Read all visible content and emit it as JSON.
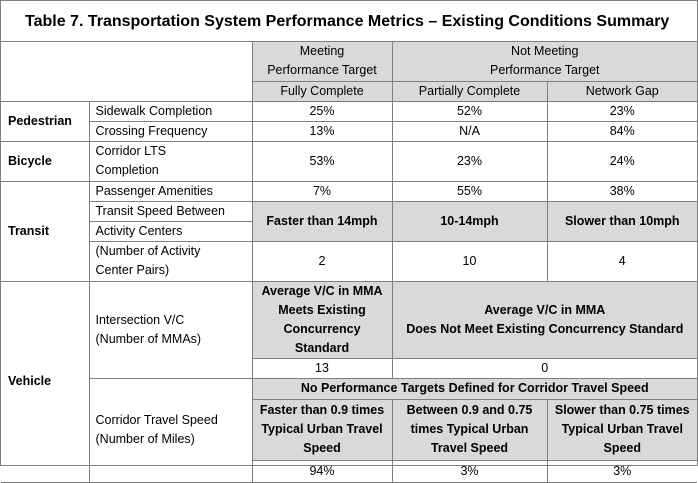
{
  "title": "Table 7. Transportation System Performance Metrics – Existing Conditions Summary",
  "header": {
    "meeting_line1": "Meeting",
    "meeting_line2": "Performance Target",
    "not_meeting_line1": "Not Meeting",
    "not_meeting_line2": "Performance Target",
    "fully_complete": "Fully Complete",
    "partially_complete": "Partially Complete",
    "network_gap": "Network Gap"
  },
  "pedestrian": {
    "category": "Pedestrian",
    "sidewalk": {
      "label": "Sidewalk Completion",
      "values": [
        "25%",
        "52%",
        "23%"
      ]
    },
    "crossing": {
      "label": "Crossing Frequency",
      "values": [
        "13%",
        "N/A",
        "84%"
      ]
    }
  },
  "bicycle": {
    "category": "Bicycle",
    "corridor_lts": {
      "label_line1": "Corridor LTS",
      "label_line2": "Completion",
      "values": [
        "53%",
        "23%",
        "24%"
      ]
    }
  },
  "transit": {
    "category": "Transit",
    "amenities": {
      "label": "Passenger Amenities",
      "values": [
        "7%",
        "55%",
        "38%"
      ]
    },
    "speed": {
      "label_line1": "Transit Speed Between",
      "label_line2": "Activity Centers",
      "label_line3": "(Number of Activity",
      "label_line4": "Center Pairs)",
      "headers": [
        "Faster than 14mph",
        "10-14mph",
        "Slower than 10mph"
      ],
      "values": [
        "2",
        "10",
        "4"
      ]
    }
  },
  "vehicle": {
    "category": "Vehicle",
    "intersection": {
      "label_line1": "Intersection V/C",
      "label_line2": "(Number of MMAs)",
      "meets_line1": "Average V/C in MMA",
      "meets_line2": "Meets Existing",
      "meets_line3": "Concurrency Standard",
      "not_meets_line1": "Average V/C in MMA",
      "not_meets_line2": "Does Not Meet Existing Concurrency Standard",
      "values": [
        "13",
        "0"
      ]
    },
    "corridor": {
      "label_line1": "Corridor Travel Speed",
      "label_line2": "(Number of Miles)",
      "no_targets": "No Performance Targets Defined for Corridor Travel Speed",
      "header1_line1": "Faster than 0.9 times",
      "header1_line2": "Typical Urban Travel",
      "header1_line3": "Speed",
      "header2_line1": "Between 0.9 and 0.75",
      "header2_line2": "times Typical Urban",
      "header2_line3": "Travel Speed",
      "header3_line1": "Slower than 0.75 times",
      "header3_line2": "Typical Urban Travel",
      "header3_line3": "Speed",
      "values": [
        "94%",
        "3%",
        "3%"
      ]
    }
  }
}
